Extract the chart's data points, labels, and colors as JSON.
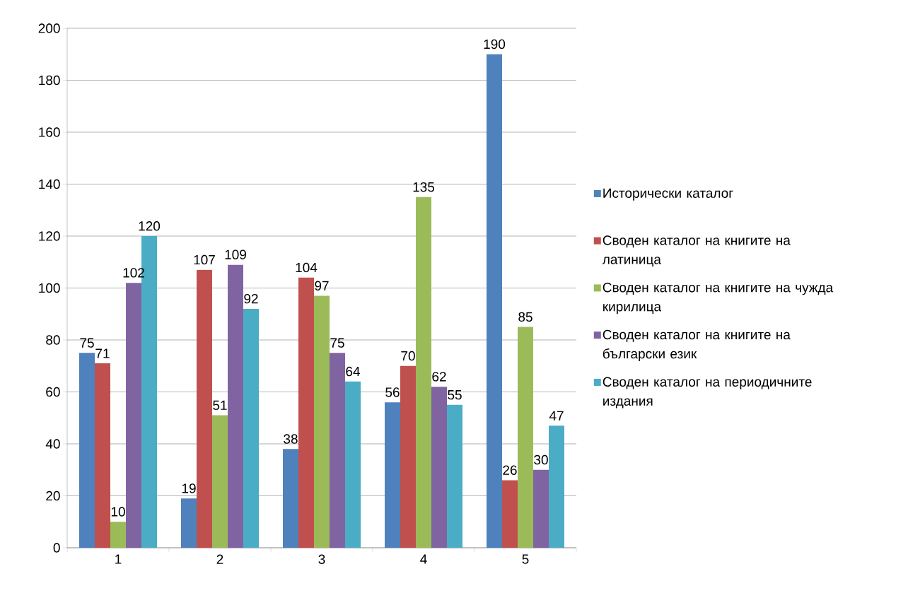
{
  "chart_data": {
    "type": "bar",
    "categories": [
      "1",
      "2",
      "3",
      "4",
      "5"
    ],
    "series": [
      {
        "name": "Исторически каталог",
        "color": "#4f81bd",
        "values": [
          75,
          19,
          38,
          56,
          190
        ]
      },
      {
        "name": "Своден каталог на книгите на латиница",
        "color": "#c0504d",
        "values": [
          71,
          107,
          104,
          70,
          26
        ]
      },
      {
        "name": "Своден каталог на книгите на чужда кирилица",
        "color": "#9bbb59",
        "values": [
          10,
          51,
          97,
          135,
          85
        ]
      },
      {
        "name": "Своден каталог на книгите на български език",
        "color": "#8064a2",
        "values": [
          102,
          109,
          75,
          62,
          30
        ]
      },
      {
        "name": "Своден каталог на периодичните издания",
        "color": "#4bacc6",
        "values": [
          120,
          92,
          64,
          55,
          47
        ]
      }
    ],
    "ylim": [
      0,
      200
    ],
    "yticks": [
      0,
      20,
      40,
      60,
      80,
      100,
      120,
      140,
      160,
      180,
      200
    ],
    "grid": "y",
    "legend": "right",
    "data_labels": true
  }
}
